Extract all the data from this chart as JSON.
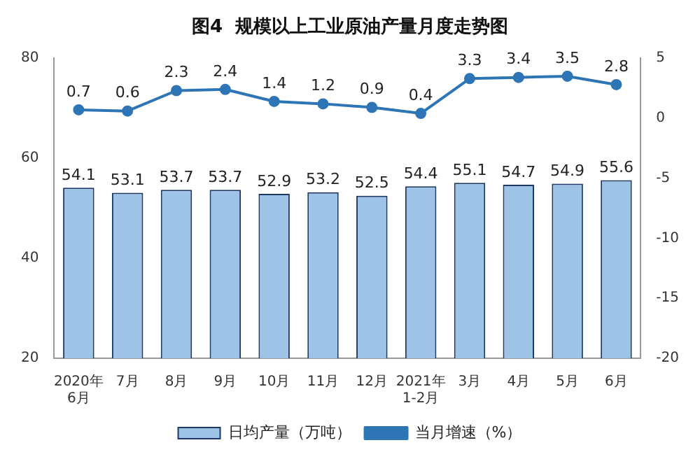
{
  "chart_data": {
    "type": "bar",
    "title": "图4  规模以上工业原油产量月度走势图",
    "categories": [
      "2020年\n6月",
      "7月",
      "8月",
      "9月",
      "10月",
      "11月",
      "12月",
      "2021年\n1-2月",
      "3月",
      "4月",
      "5月",
      "6月"
    ],
    "series": [
      {
        "name": "日均产量（万吨）",
        "color": "#9dc3e6",
        "values": [
          54.1,
          53.1,
          53.7,
          53.7,
          52.9,
          53.2,
          52.5,
          54.4,
          55.1,
          54.7,
          54.9,
          55.6
        ]
      },
      {
        "name": "当月增速（%）",
        "type": "line",
        "axis": "y2",
        "color": "#2e75b6",
        "values": [
          0.7,
          0.6,
          2.3,
          2.4,
          1.4,
          1.2,
          0.9,
          0.4,
          3.3,
          3.4,
          3.5,
          2.8
        ]
      }
    ],
    "ylim": [
      20,
      80
    ],
    "yticks": [
      20,
      40,
      60,
      80
    ],
    "y2lim": [
      -20,
      5
    ],
    "y2ticks": [
      -20,
      -15,
      -10,
      -5,
      0,
      5
    ],
    "data_labels": true,
    "legend": "bottom",
    "grid": false,
    "marker": "circle",
    "line_style": "solid"
  }
}
